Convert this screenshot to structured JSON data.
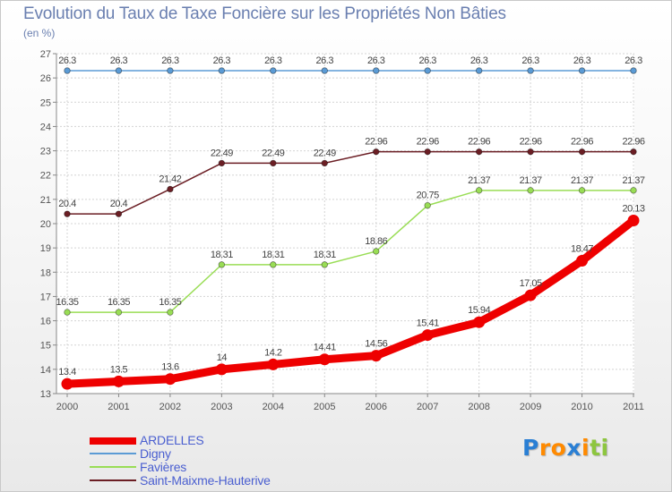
{
  "chart_data": {
    "type": "line",
    "title": "Evolution du Taux de Taxe Foncière sur les Propriétés Non Bâties",
    "subtitle": "(en %)",
    "x": [
      "2000",
      "2001",
      "2002",
      "2003",
      "2004",
      "2005",
      "2006",
      "2007",
      "2008",
      "2009",
      "2010",
      "2011"
    ],
    "ylim": [
      13,
      27
    ],
    "yticks": [
      13,
      14,
      15,
      16,
      17,
      18,
      19,
      20,
      21,
      22,
      23,
      24,
      25,
      26,
      27
    ],
    "grid": true,
    "legend_position": "bottom-left",
    "series": [
      {
        "name": "ARDELLES",
        "color": "#ee0000",
        "values": [
          13.4,
          13.5,
          13.6,
          14,
          14.2,
          14.41,
          14.56,
          15.41,
          15.94,
          17.05,
          18.47,
          20.13
        ],
        "labels": [
          "13.4",
          "13.5",
          "13.6",
          "14",
          "14.2",
          "14.41",
          "14.56",
          "15.41",
          "15.94",
          "17.05",
          "18.47",
          "20.13"
        ]
      },
      {
        "name": "Digny",
        "color": "#5b9bd5",
        "values": [
          26.3,
          26.3,
          26.3,
          26.3,
          26.3,
          26.3,
          26.3,
          26.3,
          26.3,
          26.3,
          26.3,
          26.3
        ],
        "labels": [
          "26.3",
          "26.3",
          "26.3",
          "26.3",
          "26.3",
          "26.3",
          "26.3",
          "26.3",
          "26.3",
          "26.3",
          "26.3",
          "26.3"
        ]
      },
      {
        "name": "Favières",
        "color": "#99dd55",
        "values": [
          16.35,
          16.35,
          16.35,
          18.31,
          18.31,
          18.31,
          18.86,
          20.75,
          21.37,
          21.37,
          21.37,
          21.37
        ],
        "labels": [
          "16.35",
          "16.35",
          "16.35",
          "18.31",
          "18.31",
          "18.31",
          "18.86",
          "20.75",
          "21.37",
          "21.37",
          "21.37",
          "21.37"
        ]
      },
      {
        "name": "Saint-Maixme-Hauterive",
        "color": "#6b1e24",
        "values": [
          20.4,
          20.4,
          21.42,
          22.49,
          22.49,
          22.49,
          22.96,
          22.96,
          22.96,
          22.96,
          22.96,
          22.96
        ],
        "labels": [
          "20.4",
          "20.4",
          "21.42",
          "22.49",
          "22.49",
          "22.49",
          "22.96",
          "22.96",
          "22.96",
          "22.96",
          "22.96",
          "22.96"
        ]
      }
    ]
  },
  "legend": {
    "items": [
      {
        "label": "ARDELLES",
        "color": "#ee0000"
      },
      {
        "label": "Digny",
        "color": "#5b9bd5"
      },
      {
        "label": "Favières",
        "color": "#99dd55"
      },
      {
        "label": "Saint-Maixme-Hauterive",
        "color": "#6b1e24"
      }
    ]
  },
  "logo": {
    "letters": [
      "P",
      "r",
      "o",
      "x",
      "i",
      "t",
      "i"
    ],
    "colors": [
      "#2a7fd4",
      "#ff8a00",
      "#ff8a00",
      "#2a7fd4",
      "#ff8a00",
      "#8dc63f",
      "#8dc63f"
    ]
  }
}
